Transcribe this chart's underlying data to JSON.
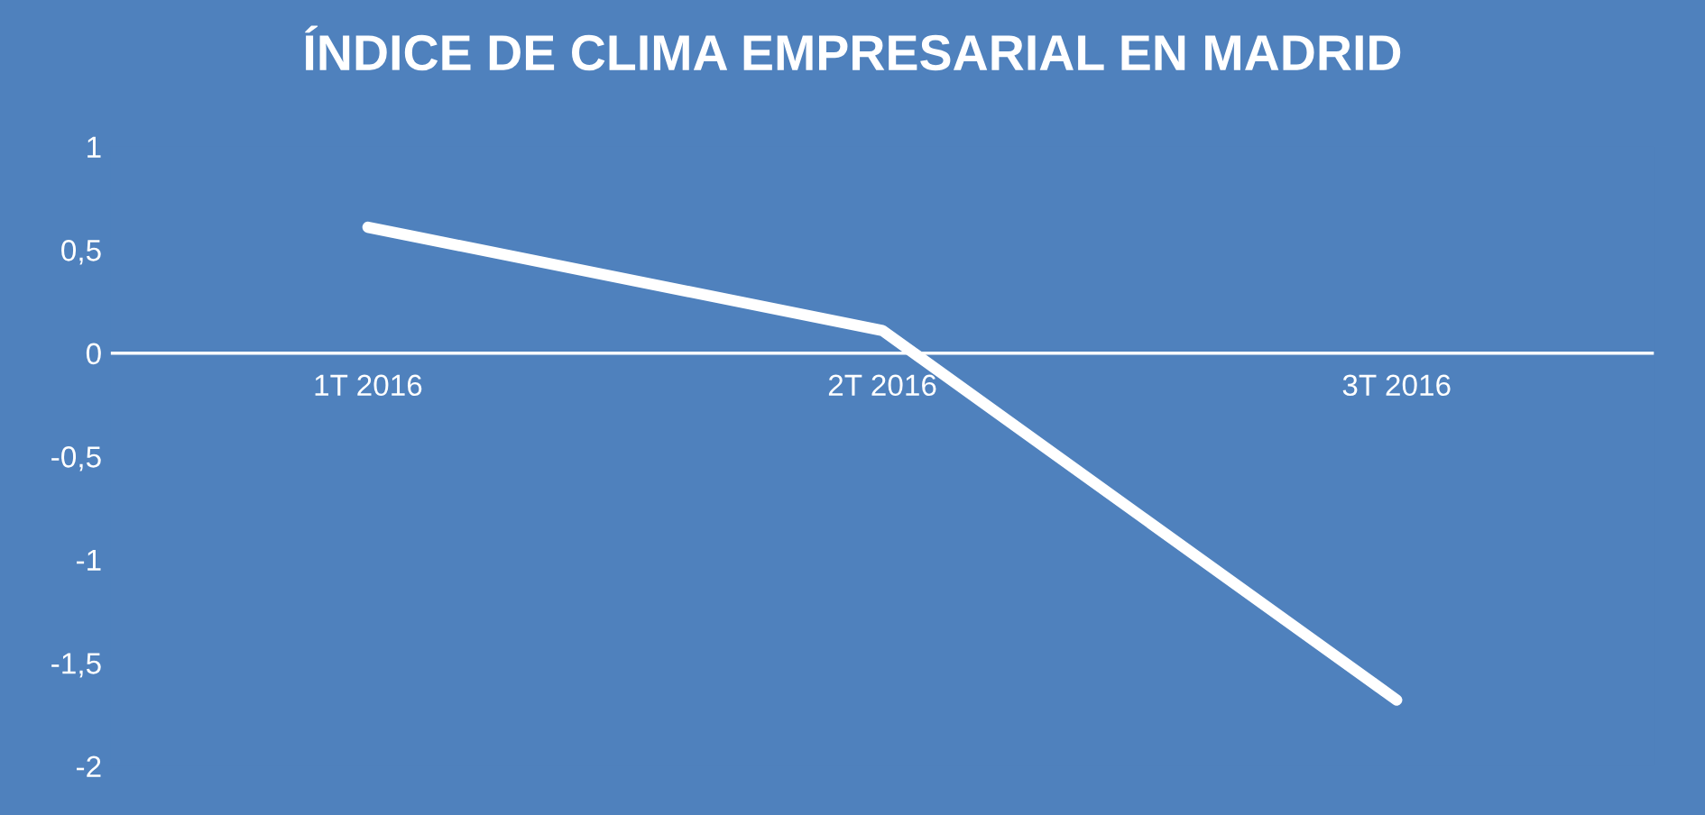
{
  "chart_data": {
    "type": "line",
    "title": "ÍNDICE DE CLIMA EMPRESARIAL EN MADRID",
    "categories": [
      "1T 2016",
      "2T 2016",
      "3T 2016"
    ],
    "series": [
      {
        "color": "#ffffff",
        "values": [
          0.61,
          0.11,
          -1.68
        ]
      }
    ],
    "ylim": [
      -2,
      1
    ],
    "yticks": [
      {
        "value": -2,
        "label": "-2"
      },
      {
        "value": -1.5,
        "label": "-1,5"
      },
      {
        "value": -1,
        "label": "-1"
      },
      {
        "value": -0.5,
        "label": "-0,5"
      },
      {
        "value": 0,
        "label": "0"
      },
      {
        "value": 0.5,
        "label": "0,5"
      },
      {
        "value": 1,
        "label": "1"
      }
    ],
    "grid": false,
    "marker": "none",
    "line_style": "solid"
  }
}
